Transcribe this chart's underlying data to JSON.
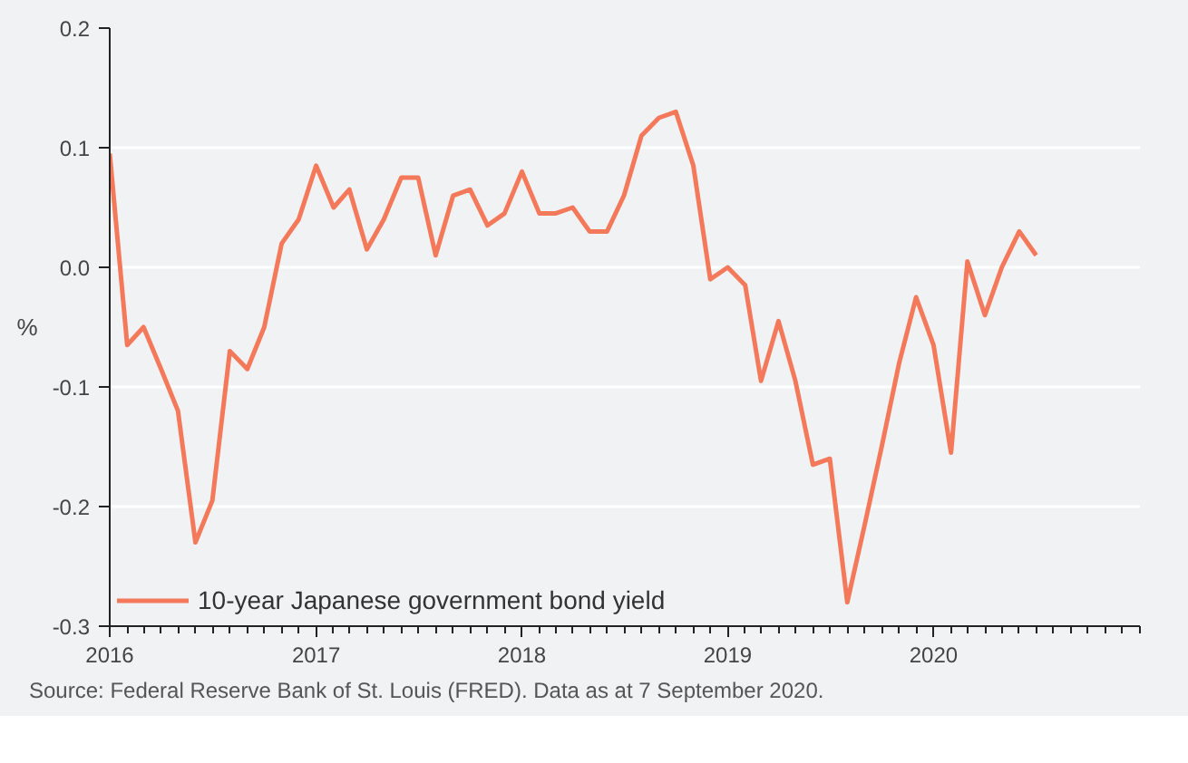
{
  "chart_data": {
    "type": "line",
    "ylabel": "%",
    "x": [
      "2016-01",
      "2016-02",
      "2016-03",
      "2016-04",
      "2016-05",
      "2016-06",
      "2016-07",
      "2016-08",
      "2016-09",
      "2016-10",
      "2016-11",
      "2016-12",
      "2017-01",
      "2017-02",
      "2017-03",
      "2017-04",
      "2017-05",
      "2017-06",
      "2017-07",
      "2017-08",
      "2017-09",
      "2017-10",
      "2017-11",
      "2017-12",
      "2018-01",
      "2018-02",
      "2018-03",
      "2018-04",
      "2018-05",
      "2018-06",
      "2018-07",
      "2018-08",
      "2018-09",
      "2018-10",
      "2018-11",
      "2018-12",
      "2019-01",
      "2019-02",
      "2019-03",
      "2019-04",
      "2019-05",
      "2019-06",
      "2019-07",
      "2019-08",
      "2019-09",
      "2019-10",
      "2019-11",
      "2019-12",
      "2020-01",
      "2020-02",
      "2020-03",
      "2020-04",
      "2020-05",
      "2020-06",
      "2020-07"
    ],
    "series": [
      {
        "name": "10-year Japanese government bond yield",
        "color": "#f4795b",
        "values": [
          0.095,
          -0.065,
          -0.05,
          -0.085,
          -0.12,
          -0.23,
          -0.195,
          -0.07,
          -0.085,
          -0.05,
          0.02,
          0.04,
          0.085,
          0.05,
          0.065,
          0.015,
          0.04,
          0.075,
          0.075,
          0.01,
          0.06,
          0.065,
          0.035,
          0.045,
          0.08,
          0.045,
          0.045,
          0.05,
          0.03,
          0.03,
          0.06,
          0.11,
          0.125,
          0.13,
          0.085,
          -0.01,
          0.0,
          -0.015,
          -0.095,
          -0.045,
          -0.095,
          -0.165,
          -0.16,
          -0.28,
          -0.215,
          -0.15,
          -0.08,
          -0.025,
          -0.065,
          -0.155,
          0.005,
          -0.04,
          0.0,
          0.03,
          0.01
        ]
      }
    ],
    "xlim": [
      "2016",
      "2021"
    ],
    "xticks": [
      "2016",
      "2017",
      "2018",
      "2019",
      "2020"
    ],
    "ylim": [
      -0.3,
      0.2
    ],
    "yticks": [
      {
        "value": -0.3,
        "label": "-0.3"
      },
      {
        "value": -0.2,
        "label": "-0.2"
      },
      {
        "value": -0.1,
        "label": "-0.1"
      },
      {
        "value": 0.0,
        "label": "0.0"
      },
      {
        "value": 0.1,
        "label": "0.1"
      },
      {
        "value": 0.2,
        "label": "0.2"
      }
    ],
    "grid": "y",
    "legend": "bottom left",
    "marker": "none",
    "line_style": "solid",
    "annotations": [
      "Source: Federal Reserve Bank of St. Louis (FRED). Data as at 7 September 2020."
    ]
  }
}
